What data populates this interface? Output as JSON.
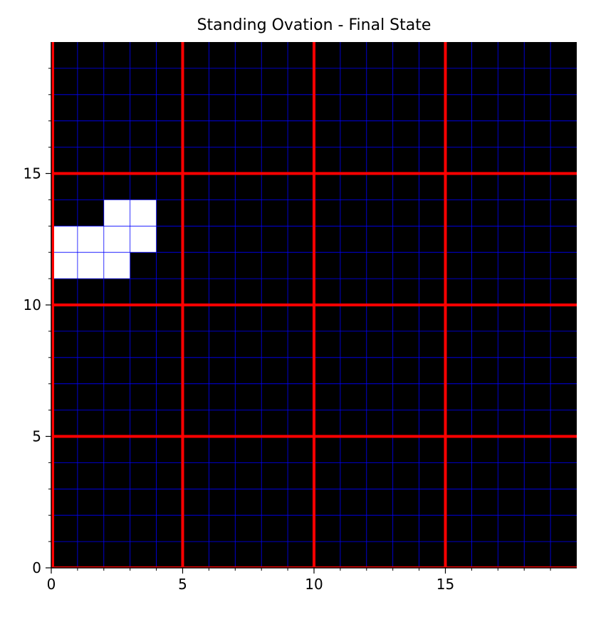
{
  "chart_data": {
    "type": "heatmap",
    "title": "Standing Ovation - Final State",
    "xlabel": "",
    "ylabel": "",
    "xlim": [
      0,
      20
    ],
    "ylim": [
      0,
      20
    ],
    "x_ticks": [
      0,
      5,
      10,
      15
    ],
    "y_ticks": [
      0,
      5,
      10,
      15
    ],
    "x_tick_labels": [
      "0",
      "5",
      "10",
      "15"
    ],
    "y_tick_labels": [
      "0",
      "5",
      "10",
      "15"
    ],
    "grid": true,
    "minor_grid_step": 1,
    "major_grid_step": 5,
    "cell_states": [
      "sitting",
      "standing"
    ],
    "standing_cells": [
      {
        "x": 0,
        "y": 11
      },
      {
        "x": 1,
        "y": 11
      },
      {
        "x": 2,
        "y": 11
      },
      {
        "x": 0,
        "y": 12
      },
      {
        "x": 1,
        "y": 12
      },
      {
        "x": 2,
        "y": 12
      },
      {
        "x": 3,
        "y": 12
      },
      {
        "x": 2,
        "y": 13
      },
      {
        "x": 3,
        "y": 13
      }
    ],
    "colors": {
      "sitting": "#000000",
      "standing": "#ffffff",
      "minor_grid": "#0000ff",
      "major_grid": "#ff0000"
    }
  }
}
